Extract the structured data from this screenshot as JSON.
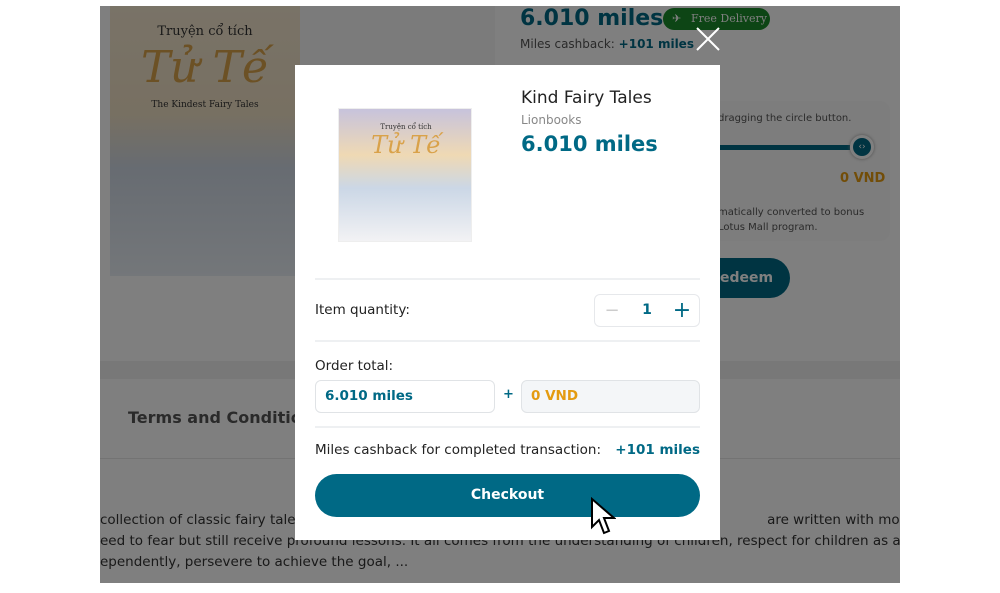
{
  "background": {
    "cover": {
      "line1": "Truyện cổ tích",
      "line2": "Tử Tế",
      "line3": "The Kindest Fairy Tales"
    },
    "price": "6.010 miles",
    "badge": "Free Delivery",
    "cashback_label": "Miles cashback:",
    "cashback_value": "+101 miles",
    "slider_hint": "dragging the circle button.",
    "slider_value": "0 VND",
    "convert_note_1": "matically converted to bonus",
    "convert_note_2": "Lotus Mall program.",
    "redeem_label": "edeem",
    "terms_tab": "Terms and Condition",
    "desc_1": "collection of classic fairy tales t                                                                                                          are written with modern, hu",
    "desc_2": "eed to fear but still receive profound lessons. It all comes from the understanding of children, respect for children as a true adu",
    "desc_3": "ependently, persevere to achieve the goal, ..."
  },
  "modal": {
    "product": {
      "title": "Kind Fairy Tales",
      "brand": "Lionbooks",
      "price": "6.010 miles",
      "image_text_1": "Truyện cổ tích",
      "image_text_2": "Tử Tế"
    },
    "quantity_label": "Item quantity:",
    "quantity": "1",
    "minus": "−",
    "plus": "+",
    "order_total_label": "Order total:",
    "miles_total": "6.010 miles",
    "plus_sign": "+",
    "vnd_total": "0 VND",
    "cashback_label": "Miles cashback for completed transaction:",
    "cashback_value": "+101 miles",
    "checkout_label": "Checkout"
  },
  "colors": {
    "primary": "#006985",
    "vnd": "#e49b10",
    "badge": "#1b8a2a"
  }
}
